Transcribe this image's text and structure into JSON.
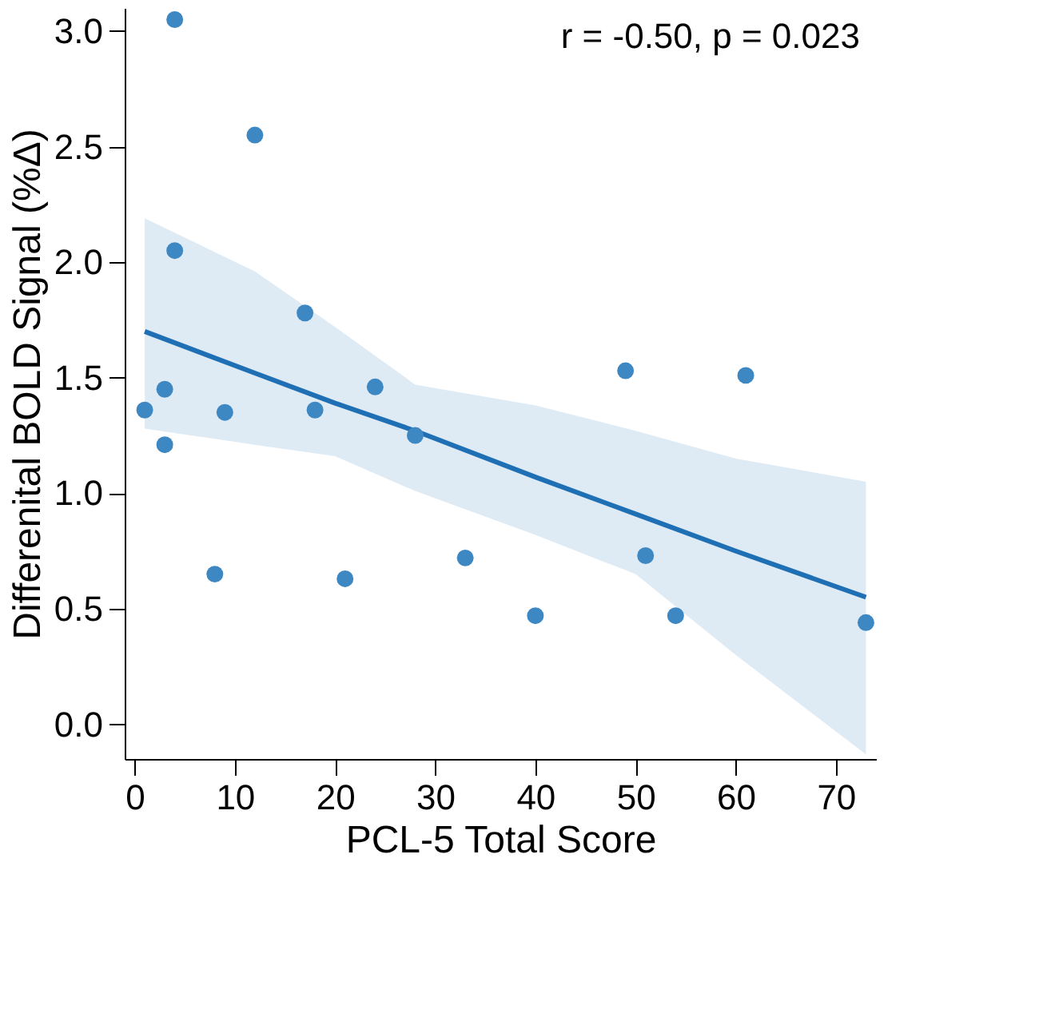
{
  "chart_data": {
    "type": "scatter",
    "xlabel": "PCL-5 Total Score",
    "ylabel": "Differenital BOLD Signal (%Δ)",
    "annotations": [
      "r = -0.50, p = 0.023"
    ],
    "xlim": [
      -1,
      74
    ],
    "xticks": [
      0,
      10,
      20,
      30,
      40,
      50,
      60,
      70
    ],
    "ylim": [
      -0.15,
      3.1
    ],
    "yticks": [
      {
        "value": 0,
        "label": "0.0"
      },
      0.5,
      {
        "value": 1,
        "label": "1.0"
      },
      1.5,
      {
        "value": 2,
        "label": "2.0"
      },
      2.5,
      {
        "value": 3,
        "label": "3.0"
      }
    ],
    "grid": false,
    "legend": false,
    "marker": "circle",
    "series": [
      {
        "color": "#3d87c3",
        "x": [
          1,
          3,
          3,
          4,
          4,
          8,
          9,
          12,
          17,
          18,
          21,
          24,
          28,
          33,
          40,
          49,
          51,
          54,
          61,
          73
        ],
        "values": [
          1.36,
          1.45,
          1.21,
          3.05,
          2.05,
          0.65,
          1.35,
          2.55,
          1.78,
          1.36,
          0.63,
          1.46,
          1.25,
          0.72,
          0.47,
          1.53,
          0.73,
          0.47,
          1.51,
          0.44
        ]
      },
      {
        "type": "line",
        "color": "#1f6fb4",
        "line_style": "solid",
        "marker": "none",
        "x": [
          1,
          12,
          20,
          28,
          40,
          50,
          60,
          73
        ],
        "values": [
          1.7,
          1.52,
          1.39,
          1.27,
          1.07,
          0.91,
          0.75,
          0.55
        ],
        "lower": [
          1.28,
          1.21,
          1.16,
          1.01,
          0.82,
          0.65,
          0.3,
          -0.13
        ],
        "upper": [
          2.19,
          1.96,
          1.72,
          1.47,
          1.38,
          1.27,
          1.15,
          1.05
        ]
      }
    ]
  }
}
